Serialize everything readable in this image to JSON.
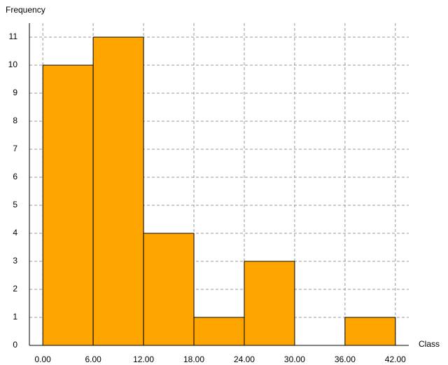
{
  "chart_data": {
    "type": "histogram",
    "x_label": "Class",
    "y_label": "Frequency",
    "bins": [
      0,
      6,
      12,
      18,
      24,
      30,
      36,
      42
    ],
    "values": [
      10,
      11,
      4,
      1,
      3,
      0,
      1
    ],
    "color": "#ffa500",
    "xlim": [
      -1.6,
      43.6
    ],
    "xticks": [
      {
        "value": 0,
        "label": "0.00"
      },
      {
        "value": 6,
        "label": "6.00"
      },
      {
        "value": 12,
        "label": "12.00"
      },
      {
        "value": 18,
        "label": "18.00"
      },
      {
        "value": 24,
        "label": "24.00"
      },
      {
        "value": 30,
        "label": "30.00"
      },
      {
        "value": 36,
        "label": "36.00"
      },
      {
        "value": 42,
        "label": "42.00"
      }
    ],
    "ylim": [
      0,
      11.5
    ],
    "yticks": [
      0,
      1,
      2,
      3,
      4,
      5,
      6,
      7,
      8,
      9,
      10,
      11
    ],
    "grid": true
  }
}
